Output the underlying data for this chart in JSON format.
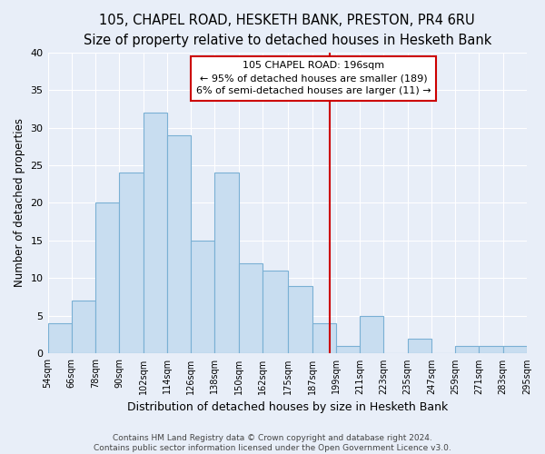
{
  "title1": "105, CHAPEL ROAD, HESKETH BANK, PRESTON, PR4 6RU",
  "title2": "Size of property relative to detached houses in Hesketh Bank",
  "xlabel": "Distribution of detached houses by size in Hesketh Bank",
  "ylabel": "Number of detached properties",
  "bin_edges": [
    54,
    66,
    78,
    90,
    102,
    114,
    126,
    138,
    150,
    162,
    175,
    187,
    199,
    211,
    223,
    235,
    247,
    259,
    271,
    283,
    295
  ],
  "bin_labels": [
    "54sqm",
    "66sqm",
    "78sqm",
    "90sqm",
    "102sqm",
    "114sqm",
    "126sqm",
    "138sqm",
    "150sqm",
    "162sqm",
    "175sqm",
    "187sqm",
    "199sqm",
    "211sqm",
    "223sqm",
    "235sqm",
    "247sqm",
    "259sqm",
    "271sqm",
    "283sqm",
    "295sqm"
  ],
  "counts": [
    4,
    7,
    20,
    24,
    32,
    29,
    15,
    24,
    12,
    11,
    9,
    4,
    1,
    5,
    0,
    2,
    0,
    1,
    1,
    1
  ],
  "bar_color": "#c8ddf0",
  "bar_edge_color": "#7ab0d4",
  "vline_x": 196,
  "vline_color": "#cc0000",
  "annotation_text": "105 CHAPEL ROAD: 196sqm\n← 95% of detached houses are smaller (189)\n6% of semi-detached houses are larger (11) →",
  "annotation_box_color": "white",
  "annotation_box_edge": "#cc0000",
  "ylim": [
    0,
    40
  ],
  "yticks": [
    0,
    5,
    10,
    15,
    20,
    25,
    30,
    35,
    40
  ],
  "background_color": "#e8eef8",
  "grid_color": "#ffffff",
  "footer_text": "Contains HM Land Registry data © Crown copyright and database right 2024.\nContains public sector information licensed under the Open Government Licence v3.0.",
  "title1_fontsize": 10.5,
  "title2_fontsize": 9,
  "xlabel_fontsize": 9,
  "ylabel_fontsize": 8.5,
  "footer_fontsize": 6.5
}
